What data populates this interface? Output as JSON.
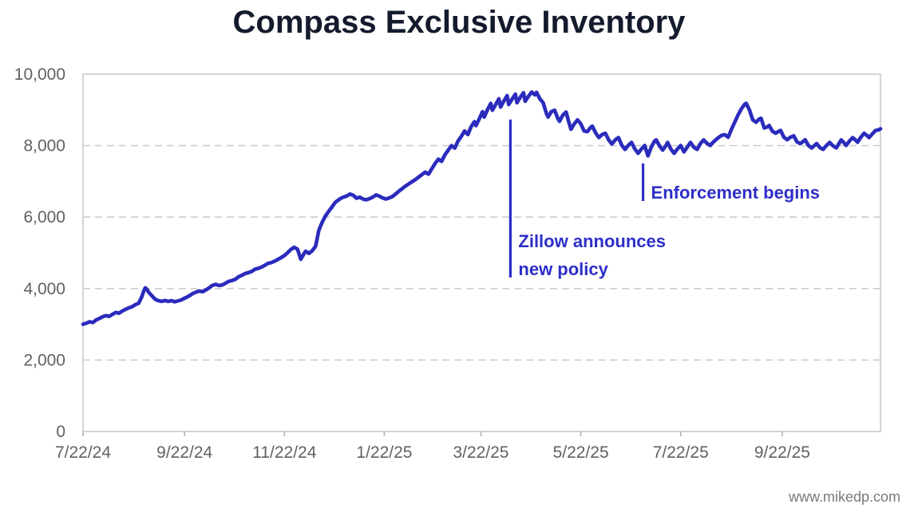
{
  "page": {
    "background": "#ffffff"
  },
  "chart_data": {
    "type": "line",
    "title": "Compass Exclusive Inventory",
    "title_color": "#141b2d",
    "line_color": "#2b2bbd",
    "annotation_color": "#2d2ec8",
    "axis_text_color": "#616161",
    "grid_color": "#cccccc",
    "border_color": "#c9c9c9",
    "tick_color": "#b3b3b3",
    "watermark_color": "#7a7a7a",
    "xlabel": "",
    "ylabel": "",
    "x_unit": "days since 7/22/24",
    "x_range_days": [
      0,
      487
    ],
    "ylim": [
      0,
      10000
    ],
    "grid": "dashed-horizontal",
    "legend": "none",
    "y_ticks": [
      {
        "value": 0,
        "label": "0"
      },
      {
        "value": 2000,
        "label": "2,000"
      },
      {
        "value": 4000,
        "label": "4,000"
      },
      {
        "value": 6000,
        "label": "6,000"
      },
      {
        "value": 8000,
        "label": "8,000"
      },
      {
        "value": 10000,
        "label": "10,000"
      }
    ],
    "x_ticks": [
      {
        "day": 0,
        "label": "7/22/24"
      },
      {
        "day": 62,
        "label": "9/22/24"
      },
      {
        "day": 123,
        "label": "11/22/24"
      },
      {
        "day": 184,
        "label": "1/22/25"
      },
      {
        "day": 243,
        "label": "3/22/25"
      },
      {
        "day": 304,
        "label": "5/22/25"
      },
      {
        "day": 365,
        "label": "7/22/25"
      },
      {
        "day": 427,
        "label": "9/22/25"
      }
    ],
    "annotations": [
      {
        "id": "zillow-announcement",
        "lines": [
          "Zillow announces",
          "new policy"
        ],
        "day": 261,
        "marker_value_top": 8730,
        "marker_value_bottom": 4310,
        "text_values": [
          5160,
          4380
        ]
      },
      {
        "id": "enforcement-begins",
        "lines": [
          "Enforcement begins"
        ],
        "day": 342,
        "marker_value_top": 7500,
        "marker_value_bottom": 6450,
        "text_values": [
          6520
        ]
      }
    ],
    "series": [
      {
        "name": "Compass exclusive inventory",
        "points": [
          [
            0,
            3000
          ],
          [
            2,
            3030
          ],
          [
            4,
            3070
          ],
          [
            6,
            3050
          ],
          [
            8,
            3120
          ],
          [
            10,
            3160
          ],
          [
            12,
            3210
          ],
          [
            14,
            3240
          ],
          [
            16,
            3220
          ],
          [
            18,
            3280
          ],
          [
            20,
            3330
          ],
          [
            22,
            3310
          ],
          [
            24,
            3370
          ],
          [
            26,
            3420
          ],
          [
            28,
            3460
          ],
          [
            30,
            3490
          ],
          [
            32,
            3550
          ],
          [
            34,
            3590
          ],
          [
            36,
            3780
          ],
          [
            37,
            3920
          ],
          [
            38,
            4020
          ],
          [
            39,
            3980
          ],
          [
            40,
            3900
          ],
          [
            42,
            3800
          ],
          [
            44,
            3700
          ],
          [
            46,
            3660
          ],
          [
            48,
            3640
          ],
          [
            50,
            3665
          ],
          [
            52,
            3640
          ],
          [
            54,
            3660
          ],
          [
            56,
            3630
          ],
          [
            58,
            3655
          ],
          [
            60,
            3680
          ],
          [
            61,
            3705
          ],
          [
            63,
            3750
          ],
          [
            65,
            3800
          ],
          [
            67,
            3860
          ],
          [
            69,
            3900
          ],
          [
            71,
            3930
          ],
          [
            73,
            3910
          ],
          [
            75,
            3960
          ],
          [
            77,
            4020
          ],
          [
            79,
            4090
          ],
          [
            81,
            4115
          ],
          [
            83,
            4085
          ],
          [
            85,
            4100
          ],
          [
            87,
            4150
          ],
          [
            89,
            4200
          ],
          [
            91,
            4225
          ],
          [
            93,
            4260
          ],
          [
            95,
            4330
          ],
          [
            97,
            4370
          ],
          [
            99,
            4420
          ],
          [
            101,
            4445
          ],
          [
            103,
            4480
          ],
          [
            105,
            4540
          ],
          [
            107,
            4565
          ],
          [
            109,
            4600
          ],
          [
            111,
            4650
          ],
          [
            113,
            4705
          ],
          [
            115,
            4725
          ],
          [
            117,
            4765
          ],
          [
            119,
            4815
          ],
          [
            121,
            4865
          ],
          [
            123,
            4925
          ],
          [
            125,
            5005
          ],
          [
            127,
            5095
          ],
          [
            129,
            5155
          ],
          [
            131,
            5100
          ],
          [
            133,
            4820
          ],
          [
            135,
            4980
          ],
          [
            136,
            5045
          ],
          [
            138,
            4985
          ],
          [
            140,
            5060
          ],
          [
            142,
            5180
          ],
          [
            144,
            5630
          ],
          [
            146,
            5850
          ],
          [
            148,
            6030
          ],
          [
            150,
            6160
          ],
          [
            152,
            6280
          ],
          [
            154,
            6410
          ],
          [
            156,
            6480
          ],
          [
            158,
            6540
          ],
          [
            161,
            6590
          ],
          [
            163,
            6645
          ],
          [
            165,
            6610
          ],
          [
            167,
            6530
          ],
          [
            169,
            6555
          ],
          [
            171,
            6505
          ],
          [
            173,
            6485
          ],
          [
            175,
            6515
          ],
          [
            177,
            6560
          ],
          [
            179,
            6620
          ],
          [
            181,
            6585
          ],
          [
            183,
            6535
          ],
          [
            185,
            6505
          ],
          [
            187,
            6535
          ],
          [
            189,
            6575
          ],
          [
            191,
            6650
          ],
          [
            193,
            6730
          ],
          [
            195,
            6800
          ],
          [
            197,
            6870
          ],
          [
            199,
            6930
          ],
          [
            201,
            6990
          ],
          [
            203,
            7050
          ],
          [
            205,
            7120
          ],
          [
            207,
            7190
          ],
          [
            209,
            7260
          ],
          [
            211,
            7200
          ],
          [
            213,
            7350
          ],
          [
            215,
            7500
          ],
          [
            217,
            7620
          ],
          [
            219,
            7560
          ],
          [
            221,
            7740
          ],
          [
            223,
            7870
          ],
          [
            225,
            8000
          ],
          [
            227,
            7930
          ],
          [
            229,
            8130
          ],
          [
            231,
            8260
          ],
          [
            233,
            8410
          ],
          [
            235,
            8310
          ],
          [
            237,
            8530
          ],
          [
            239,
            8670
          ],
          [
            240,
            8560
          ],
          [
            242,
            8750
          ],
          [
            244,
            8950
          ],
          [
            245,
            8800
          ],
          [
            247,
            9010
          ],
          [
            249,
            9180
          ],
          [
            250,
            8990
          ],
          [
            252,
            9150
          ],
          [
            254,
            9310
          ],
          [
            255,
            9080
          ],
          [
            257,
            9250
          ],
          [
            259,
            9400
          ],
          [
            260,
            9150
          ],
          [
            262,
            9300
          ],
          [
            264,
            9440
          ],
          [
            265,
            9200
          ],
          [
            267,
            9350
          ],
          [
            269,
            9480
          ],
          [
            270,
            9240
          ],
          [
            272,
            9380
          ],
          [
            274,
            9500
          ],
          [
            276,
            9420
          ],
          [
            277,
            9490
          ],
          [
            279,
            9310
          ],
          [
            281,
            9200
          ],
          [
            283,
            8900
          ],
          [
            284,
            8800
          ],
          [
            286,
            8950
          ],
          [
            288,
            8990
          ],
          [
            290,
            8760
          ],
          [
            291,
            8680
          ],
          [
            293,
            8850
          ],
          [
            295,
            8940
          ],
          [
            297,
            8610
          ],
          [
            298,
            8460
          ],
          [
            300,
            8610
          ],
          [
            302,
            8720
          ],
          [
            304,
            8610
          ],
          [
            306,
            8410
          ],
          [
            308,
            8390
          ],
          [
            310,
            8510
          ],
          [
            311,
            8545
          ],
          [
            313,
            8360
          ],
          [
            315,
            8225
          ],
          [
            317,
            8310
          ],
          [
            319,
            8345
          ],
          [
            321,
            8160
          ],
          [
            323,
            8045
          ],
          [
            325,
            8160
          ],
          [
            327,
            8225
          ],
          [
            329,
            8010
          ],
          [
            331,
            7895
          ],
          [
            333,
            8010
          ],
          [
            335,
            8090
          ],
          [
            337,
            7905
          ],
          [
            339,
            7785
          ],
          [
            341,
            7905
          ],
          [
            343,
            8005
          ],
          [
            345,
            7715
          ],
          [
            347,
            7955
          ],
          [
            349,
            8125
          ],
          [
            350,
            8160
          ],
          [
            352,
            7995
          ],
          [
            354,
            7875
          ],
          [
            356,
            8005
          ],
          [
            357,
            8090
          ],
          [
            359,
            7905
          ],
          [
            361,
            7785
          ],
          [
            363,
            7905
          ],
          [
            365,
            8005
          ],
          [
            367,
            7825
          ],
          [
            369,
            7955
          ],
          [
            371,
            8090
          ],
          [
            373,
            7955
          ],
          [
            375,
            7895
          ],
          [
            377,
            8055
          ],
          [
            379,
            8160
          ],
          [
            381,
            8065
          ],
          [
            383,
            8005
          ],
          [
            385,
            8105
          ],
          [
            388,
            8225
          ],
          [
            390,
            8285
          ],
          [
            392,
            8305
          ],
          [
            394,
            8235
          ],
          [
            396,
            8455
          ],
          [
            398,
            8655
          ],
          [
            400,
            8855
          ],
          [
            402,
            9025
          ],
          [
            404,
            9155
          ],
          [
            405,
            9185
          ],
          [
            407,
            8995
          ],
          [
            409,
            8720
          ],
          [
            411,
            8655
          ],
          [
            413,
            8745
          ],
          [
            414,
            8765
          ],
          [
            416,
            8495
          ],
          [
            418,
            8525
          ],
          [
            419,
            8565
          ],
          [
            421,
            8405
          ],
          [
            423,
            8345
          ],
          [
            425,
            8405
          ],
          [
            426,
            8425
          ],
          [
            428,
            8235
          ],
          [
            430,
            8165
          ],
          [
            432,
            8235
          ],
          [
            434,
            8275
          ],
          [
            436,
            8105
          ],
          [
            438,
            8055
          ],
          [
            440,
            8125
          ],
          [
            441,
            8165
          ],
          [
            443,
            8005
          ],
          [
            445,
            7935
          ],
          [
            447,
            8015
          ],
          [
            448,
            8055
          ],
          [
            450,
            7945
          ],
          [
            452,
            7895
          ],
          [
            454,
            8005
          ],
          [
            456,
            8090
          ],
          [
            458,
            7995
          ],
          [
            460,
            7935
          ],
          [
            462,
            8085
          ],
          [
            463,
            8160
          ],
          [
            465,
            8065
          ],
          [
            466,
            8005
          ],
          [
            468,
            8125
          ],
          [
            470,
            8225
          ],
          [
            472,
            8145
          ],
          [
            473,
            8095
          ],
          [
            475,
            8235
          ],
          [
            477,
            8345
          ],
          [
            479,
            8275
          ],
          [
            480,
            8225
          ],
          [
            482,
            8325
          ],
          [
            484,
            8425
          ],
          [
            486,
            8445
          ],
          [
            487,
            8470
          ]
        ]
      }
    ]
  },
  "footer": {
    "watermark": "www.mikedp.com"
  }
}
